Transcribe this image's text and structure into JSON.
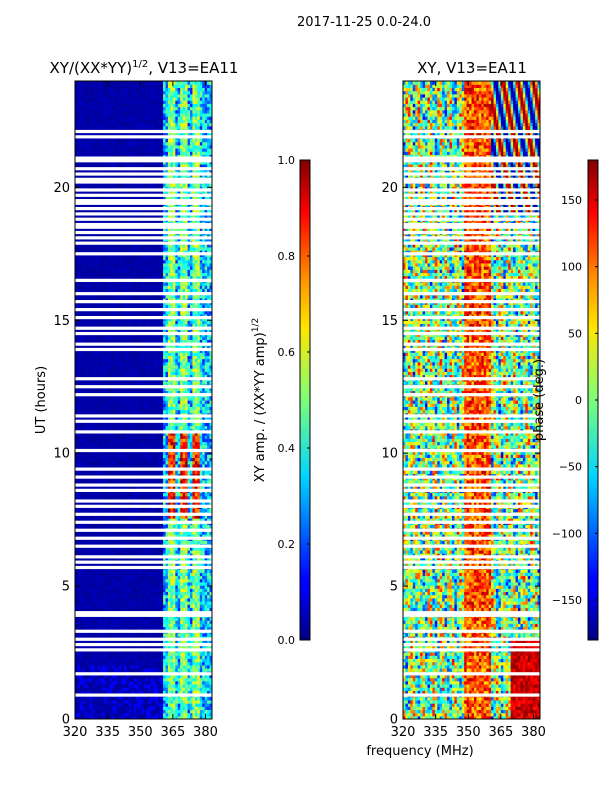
{
  "figure": {
    "suptitle": "2017-11-25 0.0-24.0",
    "xlabel_shared": "frequency (MHz)",
    "ylabel_shared": "UT (hours)"
  },
  "chart_data": [
    {
      "type": "heatmap",
      "title": "XY/(XX*YY)",
      "title_sup": "1/2",
      "title_tail": ", V13=EA11",
      "xlabel": "frequency (MHz)",
      "ylabel": "UT (hours)",
      "xlim": [
        320,
        383
      ],
      "ylim": [
        0,
        24
      ],
      "xticks": [
        320,
        335,
        350,
        365,
        380
      ],
      "yticks": [
        0,
        5,
        10,
        15,
        20
      ],
      "colormap": "jet",
      "colorbar": {
        "label": "XY amp. / (XX*YY amp)",
        "label_sup": "1/2",
        "min": 0.0,
        "max": 1.0,
        "ticks": [
          "0.0",
          "0.2",
          "0.4",
          "0.6",
          "0.8",
          "1.0"
        ],
        "tick_values": [
          0.0,
          0.2,
          0.4,
          0.6,
          0.8,
          1.0
        ]
      },
      "structure": {
        "low_band_mhz": [
          320,
          360
        ],
        "low_band_value": 0.02,
        "active_band_mhz": [
          360,
          383
        ],
        "hot_hours": [
          7.5,
          10.8
        ],
        "hot_channels_mhz": [
          364,
          370,
          376
        ]
      }
    },
    {
      "type": "heatmap",
      "title": "XY, V13=EA11",
      "xlabel": "frequency (MHz)",
      "ylabel": "",
      "xlim": [
        320,
        383
      ],
      "ylim": [
        0,
        24
      ],
      "xticks": [
        320,
        335,
        350,
        365,
        380
      ],
      "yticks": [
        0,
        5,
        10,
        15,
        20
      ],
      "colormap": "jet",
      "colorbar": {
        "label": "phase (deg.)",
        "min": -180,
        "max": 180,
        "ticks": [
          "−150",
          "−100",
          "−50",
          "0",
          "50",
          "100",
          "150"
        ],
        "tick_values": [
          -150,
          -100,
          -50,
          0,
          50,
          100,
          150
        ]
      },
      "structure": {
        "hot_band_mhz": [
          348,
          360
        ],
        "wrap_region_mhz": [
          360,
          383
        ],
        "wrap_region_hours": [
          19,
          24
        ]
      }
    }
  ],
  "flagged_hours": [
    0.9,
    1.7,
    2.6,
    2.8,
    3.0,
    3.3,
    3.9,
    4.0,
    5.7,
    5.9,
    6.1,
    6.5,
    6.8,
    7.1,
    7.4,
    7.7,
    8.0,
    8.2,
    8.6,
    8.8,
    9.1,
    9.4,
    10.1,
    10.8,
    11.2,
    11.4,
    12.2,
    12.5,
    12.8,
    13.9,
    14.1,
    14.5,
    14.7,
    15.1,
    15.4,
    15.7,
    16.0,
    16.5,
    17.5,
    17.9,
    18.1,
    18.3,
    18.5,
    18.6,
    18.8,
    19.0,
    19.2,
    19.4,
    19.5,
    19.7,
    19.9,
    20.2,
    20.3,
    20.5,
    20.7,
    21.0,
    21.1,
    21.9,
    22.1
  ]
}
